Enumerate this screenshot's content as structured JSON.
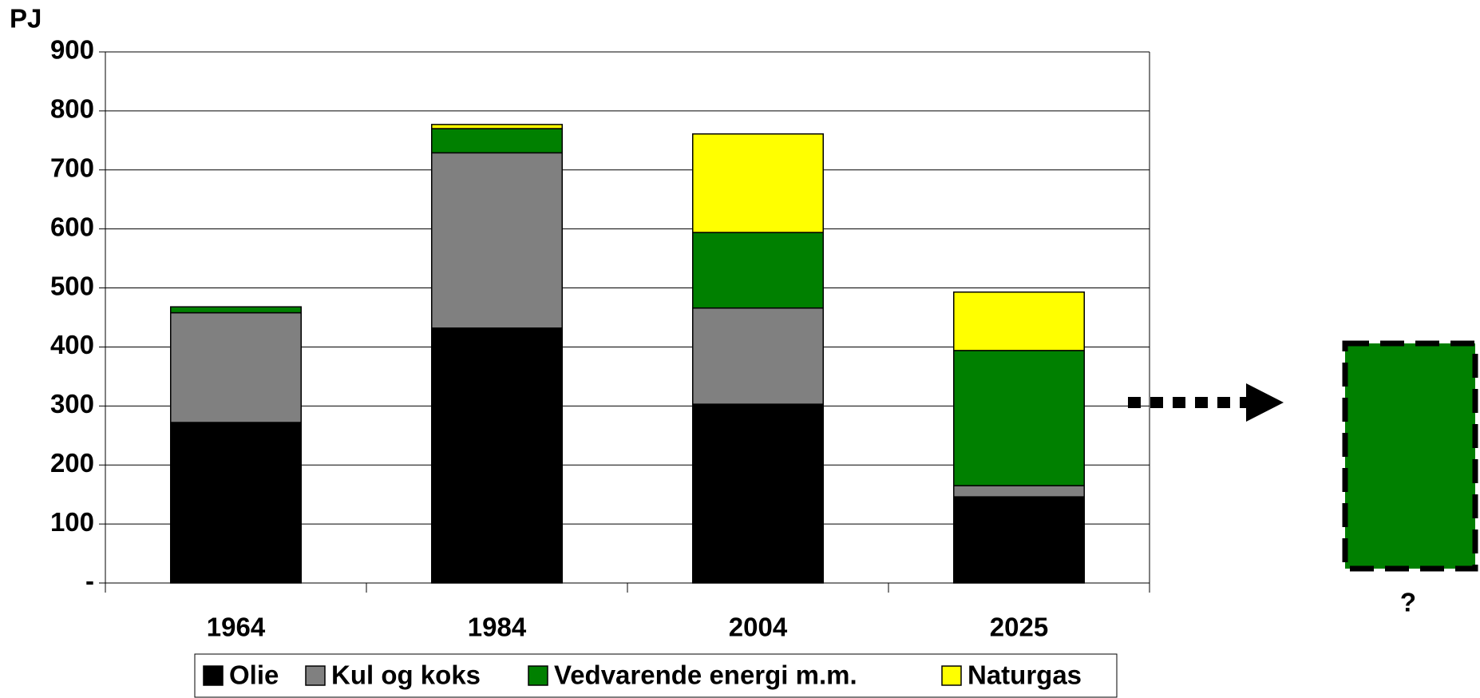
{
  "chart_data": {
    "type": "stacked_bar",
    "y_label": "PJ",
    "categories": [
      "1964",
      "1984",
      "2004",
      "2025"
    ],
    "series": [
      {
        "name": "Olie",
        "color": "#000000",
        "values": [
          272,
          432,
          303,
          146
        ]
      },
      {
        "name": "Kul og koks",
        "color": "#808080",
        "values": [
          186,
          297,
          163,
          19
        ]
      },
      {
        "name": "Vedvarende energi m.m.",
        "color": "#008000",
        "values": [
          10,
          41,
          128,
          229
        ]
      },
      {
        "name": "Naturgas",
        "color": "#ffff00",
        "values": [
          0,
          7,
          167,
          99
        ]
      }
    ],
    "ylim": [
      0,
      900
    ],
    "yticks": [
      {
        "value": 0,
        "label": "-"
      },
      100,
      200,
      300,
      400,
      500,
      600,
      700,
      800,
      900
    ],
    "grid": true,
    "legend": "bottom",
    "annotation": "?"
  }
}
